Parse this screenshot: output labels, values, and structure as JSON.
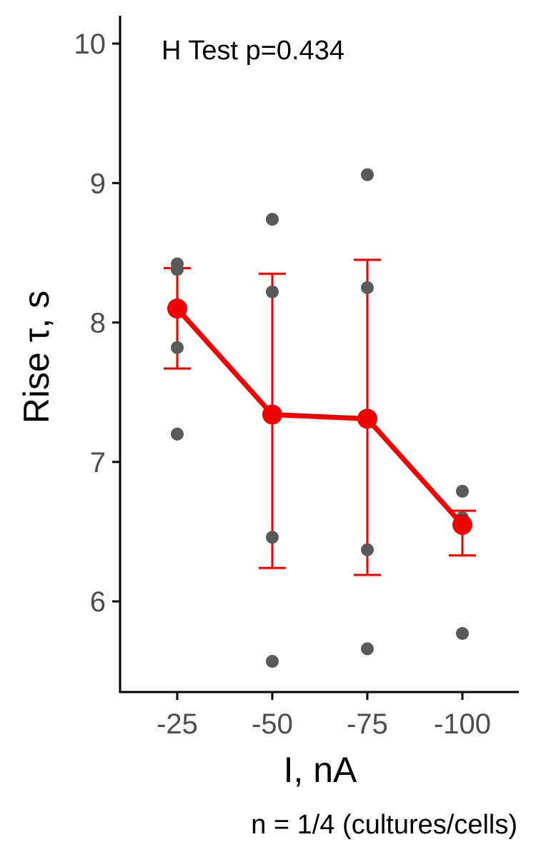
{
  "chart_data": {
    "type": "scatter",
    "annotation": "H Test p=0.434",
    "xlabel": "I, nA",
    "ylabel": "Rise τ, s",
    "caption": "n = 1/4 (cultures/cells)",
    "categories": [
      "-25",
      "-50",
      "-75",
      "-100"
    ],
    "ylim": [
      5.35,
      10.2
    ],
    "yticks": [
      6,
      7,
      8,
      9,
      10
    ],
    "grid": false,
    "colors": {
      "mean": "#ee0000",
      "points": "#595959",
      "axis": "#000000",
      "tick_label": "#4d4d4d"
    },
    "points": [
      [
        8.42,
        8.38,
        7.82,
        7.2
      ],
      [
        8.74,
        8.22,
        6.46,
        5.57
      ],
      [
        9.06,
        8.25,
        6.37,
        5.66
      ],
      [
        6.79,
        6.6,
        6.52,
        5.77
      ]
    ],
    "series": [
      {
        "values": [
          8.1,
          7.34,
          7.31,
          6.55
        ],
        "error_low": [
          7.67,
          6.24,
          6.19,
          6.33
        ],
        "error_high": [
          8.39,
          8.35,
          8.45,
          6.65
        ]
      }
    ]
  }
}
